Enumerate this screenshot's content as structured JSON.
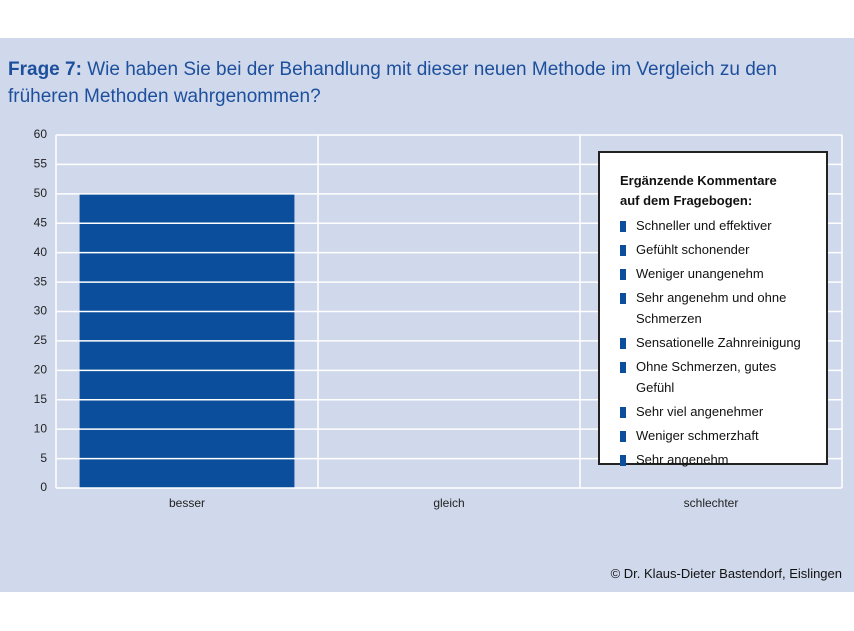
{
  "chart_data": {
    "type": "bar",
    "title_prefix": "Frage 7:",
    "title": "Wie haben Sie bei der Behandlung mit dieser neuen Methode im Vergleich zu den früheren Methoden wahrgenommen?",
    "categories": [
      "besser",
      "gleich",
      "schlechter"
    ],
    "values": [
      50,
      0,
      0
    ],
    "color": "#0b4f9c",
    "ylim": [
      0,
      60
    ],
    "yticks": [
      0,
      5,
      10,
      15,
      20,
      25,
      30,
      35,
      40,
      45,
      50,
      55,
      60
    ],
    "grid": true,
    "comments": {
      "heading": [
        "Ergänzende Kommentare",
        "auf dem Fragebogen:"
      ],
      "items": [
        "Schneller und effektiver",
        "Gefühlt schonender",
        "Weniger unangenehm",
        "Sehr angenehm und ohne Schmerzen",
        "Sensationelle Zahnreinigung",
        "Ohne Schmerzen, gutes Gefühl",
        "Sehr viel angenehmer",
        "Weniger schmerzhaft",
        "Sehr angenehm"
      ]
    },
    "credit": "© Dr. Klaus-Dieter Bastendorf, Eislingen"
  }
}
